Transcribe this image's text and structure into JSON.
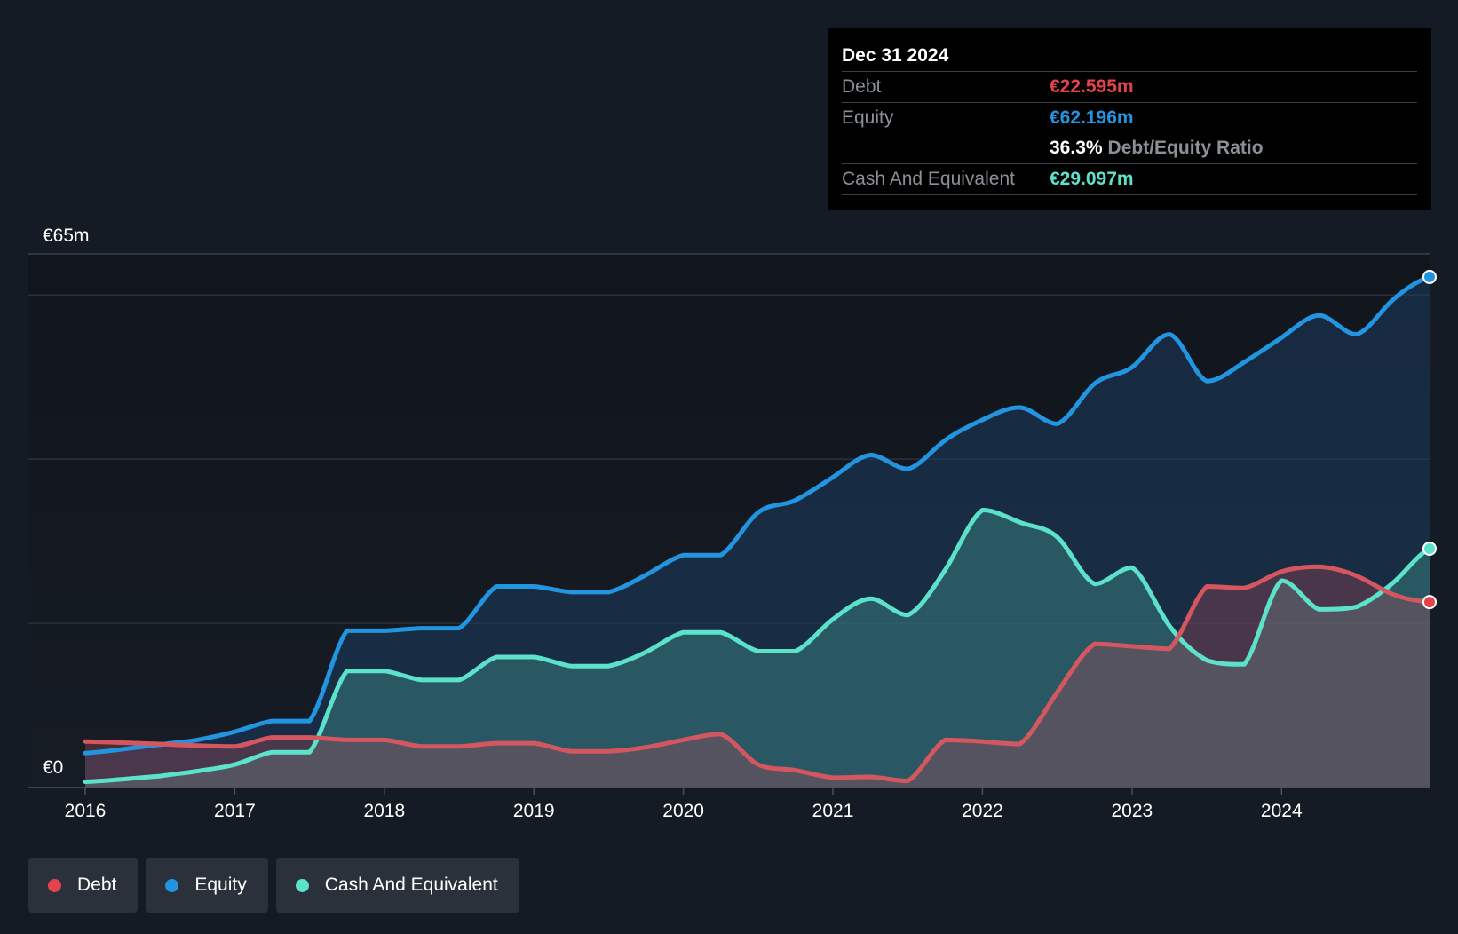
{
  "tooltip": {
    "date": "Dec 31 2024",
    "debt_label": "Debt",
    "debt_value": "€22.595m",
    "equity_label": "Equity",
    "equity_value": "€62.196m",
    "ratio_value": "36.3%",
    "ratio_label": "Debt/Equity Ratio",
    "cash_label": "Cash And Equivalent",
    "cash_value": "€29.097m"
  },
  "legend": [
    {
      "label": "Debt",
      "color": "#e5434b"
    },
    {
      "label": "Equity",
      "color": "#2394df"
    },
    {
      "label": "Cash And Equivalent",
      "color": "#5ce2cb"
    }
  ],
  "chart_data": {
    "type": "area",
    "title": "",
    "xlabel": "",
    "ylabel": "",
    "xlim": [
      2016,
      2024.99
    ],
    "ylim": [
      0,
      65
    ],
    "y_tick_labels": [
      {
        "value": 0,
        "label": "€0"
      },
      {
        "value": 65,
        "label": "€65m"
      }
    ],
    "x_ticks": [
      2016,
      2017,
      2018,
      2019,
      2020,
      2021,
      2022,
      2023,
      2024
    ],
    "grid_values": [
      20,
      40,
      60
    ],
    "series": [
      {
        "name": "Equity",
        "color": "#2394df",
        "points": [
          [
            2016,
            4.2
          ],
          [
            2016.5,
            5.2
          ],
          [
            2016.75,
            5.8
          ],
          [
            2017,
            6.8
          ],
          [
            2017.25,
            8.1
          ],
          [
            2017.5,
            8.1
          ],
          [
            2017.75,
            19.1
          ],
          [
            2018,
            19.1
          ],
          [
            2018.25,
            19.4
          ],
          [
            2018.5,
            19.4
          ],
          [
            2018.75,
            24.5
          ],
          [
            2019,
            24.5
          ],
          [
            2019.25,
            23.8
          ],
          [
            2019.5,
            23.8
          ],
          [
            2019.75,
            25.9
          ],
          [
            2020,
            28.3
          ],
          [
            2020.25,
            28.3
          ],
          [
            2020.5,
            33.5
          ],
          [
            2020.75,
            35.0
          ],
          [
            2021,
            37.8
          ],
          [
            2021.25,
            40.5
          ],
          [
            2021.5,
            38.8
          ],
          [
            2021.75,
            42.3
          ],
          [
            2022,
            44.8
          ],
          [
            2022.25,
            46.3
          ],
          [
            2022.5,
            44.3
          ],
          [
            2022.75,
            49.2
          ],
          [
            2023,
            51.2
          ],
          [
            2023.25,
            55.2
          ],
          [
            2023.5,
            49.5
          ],
          [
            2023.75,
            51.8
          ],
          [
            2024,
            54.8
          ],
          [
            2024.25,
            57.5
          ],
          [
            2024.5,
            55.2
          ],
          [
            2024.75,
            59.5
          ],
          [
            2024.99,
            62.196
          ]
        ]
      },
      {
        "name": "Cash And Equivalent",
        "color": "#5ce2cb",
        "points": [
          [
            2016,
            0.7
          ],
          [
            2016.5,
            1.4
          ],
          [
            2016.75,
            2.0
          ],
          [
            2017,
            2.8
          ],
          [
            2017.25,
            4.3
          ],
          [
            2017.5,
            4.3
          ],
          [
            2017.75,
            14.2
          ],
          [
            2018,
            14.2
          ],
          [
            2018.25,
            13.1
          ],
          [
            2018.5,
            13.1
          ],
          [
            2018.75,
            15.9
          ],
          [
            2019,
            15.9
          ],
          [
            2019.25,
            14.8
          ],
          [
            2019.5,
            14.8
          ],
          [
            2019.75,
            16.5
          ],
          [
            2020,
            18.9
          ],
          [
            2020.25,
            18.9
          ],
          [
            2020.5,
            16.6
          ],
          [
            2020.75,
            16.6
          ],
          [
            2021,
            20.5
          ],
          [
            2021.25,
            23.0
          ],
          [
            2021.5,
            21.0
          ],
          [
            2021.75,
            26.5
          ],
          [
            2022,
            33.8
          ],
          [
            2022.25,
            32.3
          ],
          [
            2022.5,
            30.5
          ],
          [
            2022.75,
            24.8
          ],
          [
            2023,
            26.8
          ],
          [
            2023.25,
            19.7
          ],
          [
            2023.5,
            15.5
          ],
          [
            2023.75,
            15.0
          ],
          [
            2024,
            25.2
          ],
          [
            2024.25,
            21.7
          ],
          [
            2024.5,
            22.0
          ],
          [
            2024.75,
            25.0
          ],
          [
            2024.99,
            29.097
          ]
        ]
      },
      {
        "name": "Debt",
        "color": "#e5434b",
        "points": [
          [
            2016,
            5.6
          ],
          [
            2016.5,
            5.3
          ],
          [
            2016.75,
            5.1
          ],
          [
            2017,
            5.0
          ],
          [
            2017.25,
            6.1
          ],
          [
            2017.5,
            6.1
          ],
          [
            2017.75,
            5.8
          ],
          [
            2018,
            5.8
          ],
          [
            2018.25,
            5.0
          ],
          [
            2018.5,
            5.0
          ],
          [
            2018.75,
            5.4
          ],
          [
            2019,
            5.4
          ],
          [
            2019.25,
            4.4
          ],
          [
            2019.5,
            4.4
          ],
          [
            2019.75,
            4.9
          ],
          [
            2020,
            5.8
          ],
          [
            2020.25,
            6.5
          ],
          [
            2020.5,
            2.8
          ],
          [
            2020.75,
            2.1
          ],
          [
            2021,
            1.2
          ],
          [
            2021.25,
            1.3
          ],
          [
            2021.5,
            0.8
          ],
          [
            2021.75,
            5.8
          ],
          [
            2022,
            5.6
          ],
          [
            2022.25,
            5.3
          ],
          [
            2022.5,
            11.6
          ],
          [
            2022.75,
            17.5
          ],
          [
            2023,
            17.2
          ],
          [
            2023.25,
            16.9
          ],
          [
            2023.5,
            24.5
          ],
          [
            2023.75,
            24.3
          ],
          [
            2024,
            26.3
          ],
          [
            2024.25,
            26.9
          ],
          [
            2024.5,
            25.8
          ],
          [
            2024.75,
            23.5
          ],
          [
            2024.99,
            22.595
          ]
        ]
      }
    ],
    "legend_position": "bottom-left",
    "grid": true
  }
}
